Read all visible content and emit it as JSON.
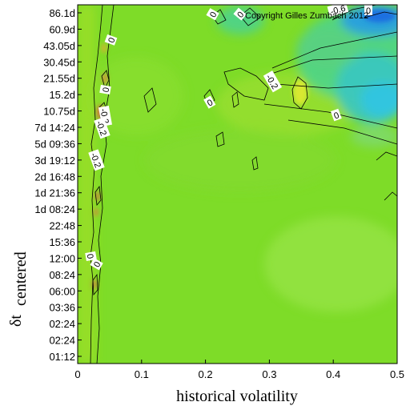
{
  "chart_data": {
    "type": "heatmap",
    "title": "",
    "xlabel": "historical volatility",
    "ylabel_main": "δt",
    "ylabel_sub": "centered",
    "xlim": [
      0,
      0.5
    ],
    "x_ticks": [
      "0",
      "0.1",
      "0.2",
      "0.3",
      "0.4",
      "0.5"
    ],
    "y_ticks": [
      "01:12",
      "02:24",
      "02:24",
      "03:36",
      "06:00",
      "08:24",
      "12:00",
      "15:36",
      "22:48",
      "1d 08:24",
      "1d 21:36",
      "2d 16:48",
      "3d 19:12",
      "5d 09:36",
      "7d 14:24",
      "10.75d",
      "15.2d",
      "21.55d",
      "30.45d",
      "43.05d",
      "60.9d",
      "86.1d"
    ],
    "contour_labels": [
      "0",
      "0",
      "-0.6",
      "0",
      "0",
      "-0.2",
      "0",
      "0",
      "0",
      "-0.2",
      "-0.2",
      "0",
      "0",
      "-0.2"
    ],
    "background_color": "#7edc28",
    "copyright": "Copyright Gilles Zumbach 2012"
  }
}
